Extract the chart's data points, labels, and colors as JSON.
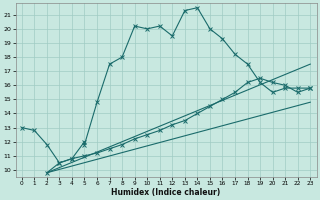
{
  "title": "",
  "xlabel": "Humidex (Indice chaleur)",
  "xlim": [
    -0.5,
    23.5
  ],
  "ylim": [
    9.5,
    21.8
  ],
  "xticks": [
    0,
    1,
    2,
    3,
    4,
    5,
    6,
    7,
    8,
    9,
    10,
    11,
    12,
    13,
    14,
    15,
    16,
    17,
    18,
    19,
    20,
    21,
    22,
    23
  ],
  "yticks": [
    10,
    11,
    12,
    13,
    14,
    15,
    16,
    17,
    18,
    19,
    20,
    21
  ],
  "background_color": "#c8e8e0",
  "grid_color": "#a0ccc4",
  "line_color": "#1a6b6b",
  "line1_x": [
    0,
    1,
    2,
    3,
    4,
    5,
    5,
    6,
    7,
    8,
    9,
    10,
    11,
    12,
    13,
    14,
    15,
    16,
    17,
    18,
    19,
    20,
    21,
    22,
    23
  ],
  "line1_y": [
    13.0,
    12.8,
    11.8,
    10.5,
    10.8,
    12.0,
    11.8,
    14.8,
    17.5,
    18.0,
    20.2,
    20.0,
    20.2,
    19.5,
    21.3,
    21.5,
    20.0,
    19.3,
    18.2,
    17.5,
    16.2,
    15.5,
    15.8,
    15.8,
    15.8
  ],
  "line2_x": [
    2,
    3,
    4,
    5,
    6,
    7,
    8,
    9,
    10,
    11,
    12,
    13,
    14,
    15,
    16,
    17,
    18,
    19,
    20,
    21,
    22,
    23
  ],
  "line2_y": [
    9.8,
    10.5,
    10.8,
    11.0,
    11.2,
    11.5,
    11.8,
    12.2,
    12.5,
    12.8,
    13.2,
    13.5,
    14.0,
    14.5,
    15.0,
    15.5,
    16.2,
    16.5,
    16.2,
    16.0,
    15.5,
    15.8
  ],
  "line3_x": [
    2,
    23
  ],
  "line3_y": [
    9.8,
    14.8
  ],
  "line4_x": [
    2,
    23
  ],
  "line4_y": [
    9.8,
    17.5
  ],
  "figsize": [
    3.2,
    2.0
  ],
  "dpi": 100
}
